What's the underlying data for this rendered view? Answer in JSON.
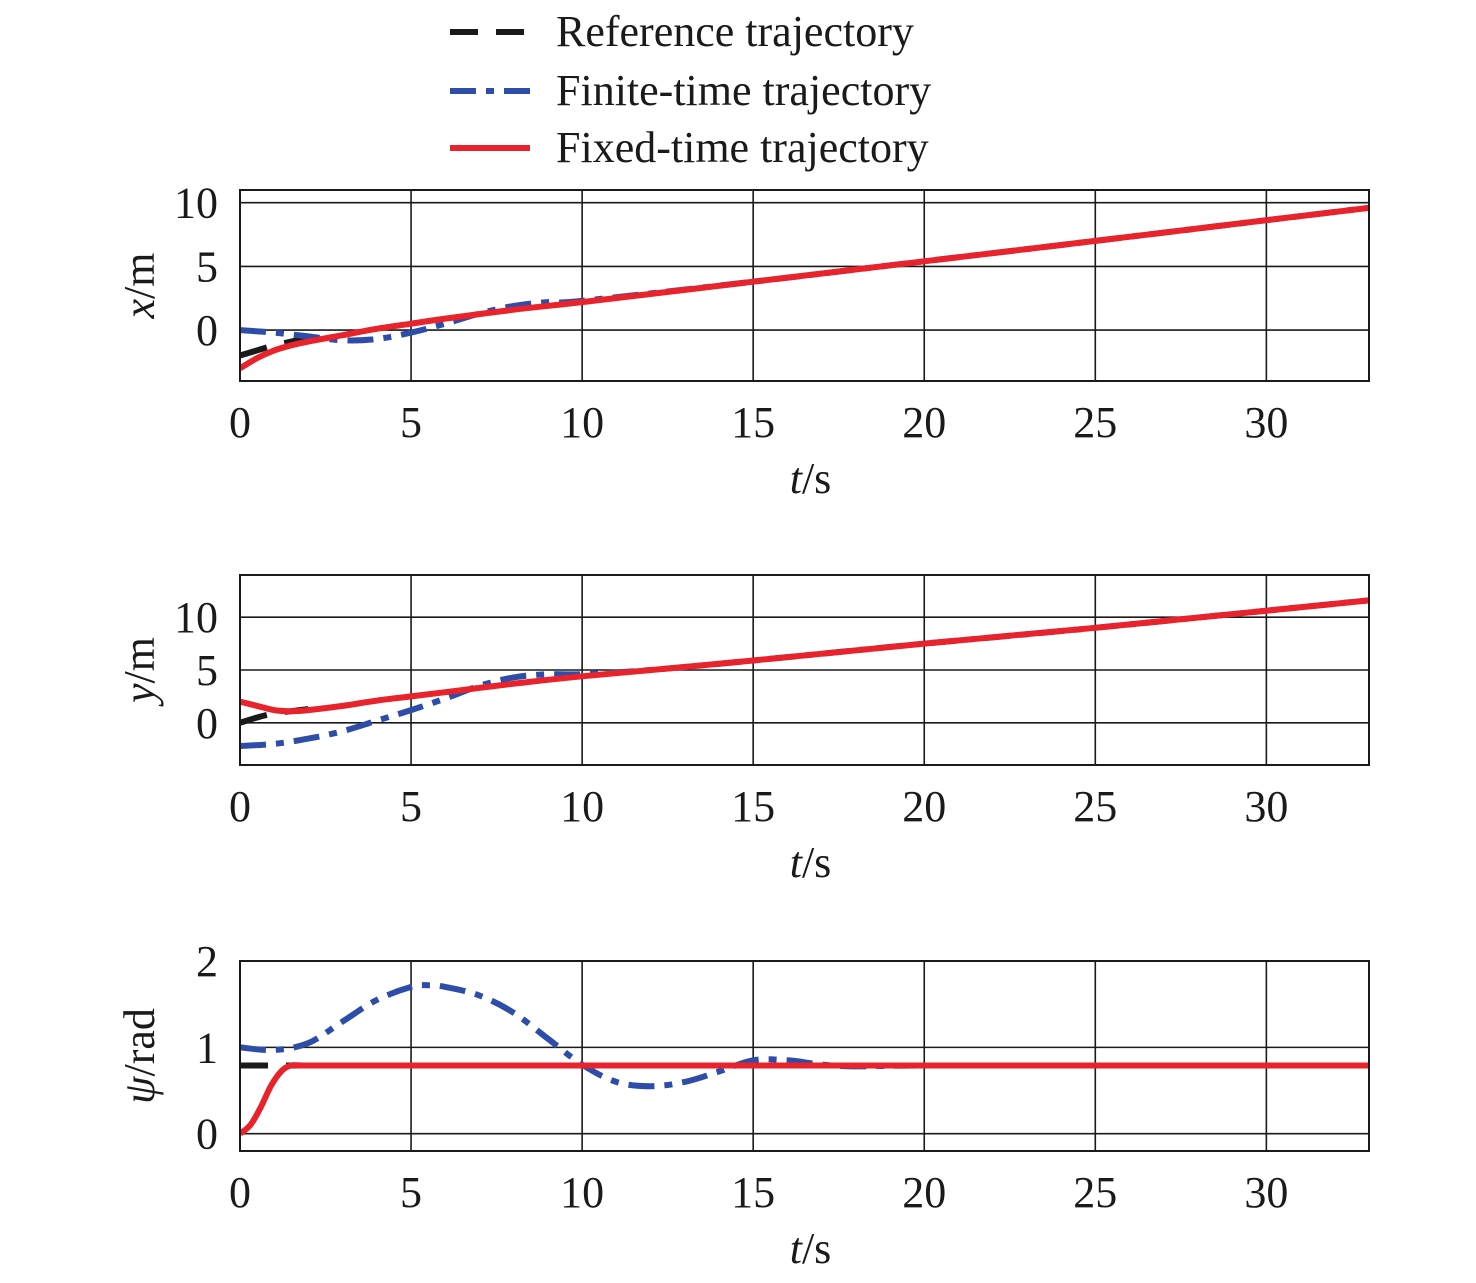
{
  "legend": {
    "entries": [
      {
        "label": "Reference trajectory",
        "color": "#1a1a1a",
        "style": "dashed"
      },
      {
        "label": "Finite-time trajectory",
        "color": "#2e4da8",
        "style": "dashdot"
      },
      {
        "label": "Fixed-time trajectory",
        "color": "#e8232b",
        "style": "solid"
      }
    ]
  },
  "chart_data": [
    {
      "type": "line",
      "xlabel": {
        "var": "t",
        "unit": "/s"
      },
      "ylabel": {
        "var": "x",
        "unit": "/m"
      },
      "xlim": [
        0,
        33
      ],
      "ylim": [
        -4,
        11
      ],
      "xticks": [
        0,
        5,
        10,
        15,
        20,
        25,
        30
      ],
      "yticks": [
        0,
        5,
        10
      ],
      "grid": true,
      "series": [
        {
          "name": "Reference trajectory",
          "x": [
            0,
            0.5,
            1,
            1.5,
            2
          ],
          "y": [
            -2.0,
            -1.6,
            -1.2,
            -0.9,
            -0.6
          ]
        },
        {
          "name": "Finite-time trajectory",
          "x": [
            0,
            1,
            2,
            3,
            4,
            5,
            6,
            7,
            8,
            9,
            10,
            15,
            20,
            25,
            33
          ],
          "y": [
            0.0,
            -0.2,
            -0.5,
            -0.8,
            -0.7,
            -0.2,
            0.5,
            1.3,
            1.9,
            2.2,
            2.3,
            3.8,
            5.4,
            7.0,
            9.6
          ]
        },
        {
          "name": "Fixed-time trajectory",
          "x": [
            0,
            0.5,
            1,
            1.5,
            2,
            3,
            4,
            5,
            6,
            8,
            10,
            15,
            20,
            25,
            33
          ],
          "y": [
            -3.0,
            -2.2,
            -1.6,
            -1.2,
            -0.9,
            -0.4,
            0.1,
            0.5,
            0.9,
            1.6,
            2.2,
            3.8,
            5.4,
            7.0,
            9.6
          ]
        }
      ]
    },
    {
      "type": "line",
      "xlabel": {
        "var": "t",
        "unit": "/s"
      },
      "ylabel": {
        "var": "y",
        "unit": "/m"
      },
      "xlim": [
        0,
        33
      ],
      "ylim": [
        -4,
        14
      ],
      "xticks": [
        0,
        5,
        10,
        15,
        20,
        25,
        30
      ],
      "yticks": [
        0,
        5,
        10
      ],
      "grid": true,
      "series": [
        {
          "name": "Reference trajectory",
          "x": [
            0,
            0.5,
            1,
            1.5,
            2
          ],
          "y": [
            0.0,
            0.5,
            0.9,
            1.1,
            1.3
          ]
        },
        {
          "name": "Finite-time trajectory",
          "x": [
            0,
            1,
            2,
            3,
            4,
            5,
            6,
            7,
            8,
            9,
            10,
            12,
            15,
            20,
            25,
            33
          ],
          "y": [
            -2.2,
            -2.0,
            -1.5,
            -0.8,
            0.2,
            1.2,
            2.3,
            3.5,
            4.3,
            4.6,
            4.6,
            5.0,
            5.9,
            7.5,
            9.0,
            11.6
          ]
        },
        {
          "name": "Fixed-time trajectory",
          "x": [
            0,
            0.5,
            1,
            1.5,
            2,
            3,
            4,
            5,
            6,
            8,
            10,
            15,
            20,
            25,
            33
          ],
          "y": [
            2.0,
            1.6,
            1.2,
            1.1,
            1.2,
            1.6,
            2.1,
            2.5,
            2.9,
            3.7,
            4.4,
            5.9,
            7.5,
            9.0,
            11.6
          ]
        }
      ]
    },
    {
      "type": "line",
      "xlabel": {
        "var": "t",
        "unit": "/s"
      },
      "ylabel": {
        "var": "ψ",
        "unit": "/rad"
      },
      "xlim": [
        0,
        33
      ],
      "ylim": [
        -0.2,
        2.0
      ],
      "xticks": [
        0,
        5,
        10,
        15,
        20,
        25,
        30
      ],
      "yticks": [
        0,
        1,
        2
      ],
      "grid": true,
      "series": [
        {
          "name": "Reference trajectory",
          "x": [
            0,
            0.5,
            1,
            1.5,
            2
          ],
          "y": [
            0.79,
            0.79,
            0.79,
            0.79,
            0.79
          ]
        },
        {
          "name": "Finite-time trajectory",
          "x": [
            0,
            1,
            2,
            3,
            4,
            5,
            5.5,
            6,
            7,
            8,
            9,
            10,
            11,
            12,
            13,
            14,
            15,
            16,
            17,
            18,
            20,
            25,
            33
          ],
          "y": [
            1.0,
            0.97,
            1.05,
            1.3,
            1.55,
            1.7,
            1.72,
            1.7,
            1.6,
            1.4,
            1.1,
            0.8,
            0.6,
            0.55,
            0.6,
            0.72,
            0.85,
            0.85,
            0.8,
            0.78,
            0.79,
            0.79,
            0.79
          ]
        },
        {
          "name": "Fixed-time trajectory",
          "x": [
            0,
            0.3,
            0.6,
            0.9,
            1.2,
            1.5,
            2,
            5,
            10,
            15,
            20,
            25,
            33
          ],
          "y": [
            0.0,
            0.1,
            0.3,
            0.55,
            0.72,
            0.79,
            0.79,
            0.79,
            0.79,
            0.79,
            0.79,
            0.79,
            0.79
          ]
        }
      ]
    }
  ]
}
